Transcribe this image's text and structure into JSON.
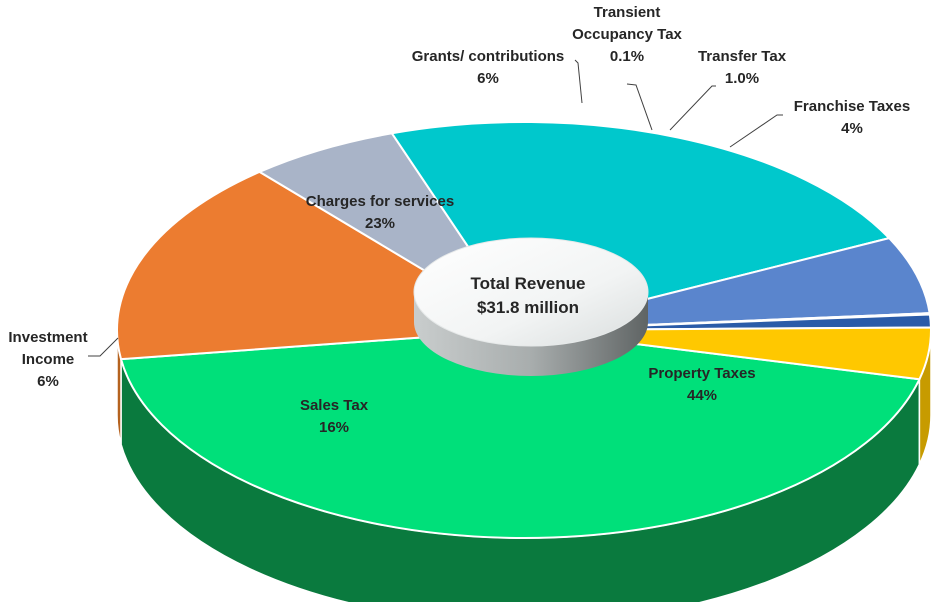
{
  "chart_data": {
    "type": "pie",
    "center_label": [
      "Total Revenue",
      "$31.8 million"
    ],
    "start_category": "Property Taxes",
    "slices": [
      {
        "name": "Property Taxes",
        "label_lines": [
          "Property Taxes",
          "44%"
        ],
        "value": 44,
        "color": "#00E07A",
        "side_color": "#0A7A3E"
      },
      {
        "name": "Sales Tax",
        "label_lines": [
          "Sales Tax",
          "16%"
        ],
        "value": 16,
        "color": "#EC7C30",
        "side_color": "#B5621F"
      },
      {
        "name": "Investment Income",
        "label_lines": [
          "Investment",
          "Income",
          "6%"
        ],
        "value": 6,
        "color": "#A9B4C8",
        "side_color": "#8792A5"
      },
      {
        "name": "Charges for services",
        "label_lines": [
          "Charges for services",
          "23%"
        ],
        "value": 23,
        "color": "#00C8CC",
        "side_color": "#009497"
      },
      {
        "name": "Grants/ contributions",
        "label_lines": [
          "Grants/ contributions",
          "6%"
        ],
        "value": 6,
        "color": "#5A85CD",
        "side_color": "#3E64A3"
      },
      {
        "name": "Transient Occupancy Tax",
        "label_lines": [
          "Transient",
          "Occupancy Tax",
          "0.1%"
        ],
        "value": 0.1,
        "color": "#2F4F8F",
        "side_color": "#233B6B"
      },
      {
        "name": "Transfer Tax",
        "label_lines": [
          "Transfer Tax",
          "1.0%"
        ],
        "value": 1.0,
        "color": "#2A5BA8",
        "side_color": "#1F447E"
      },
      {
        "name": "Franchise Taxes",
        "label_lines": [
          "Franchise Taxes",
          "4%"
        ],
        "value": 4,
        "color": "#FFC800",
        "side_color": "#C79B00"
      }
    ]
  }
}
